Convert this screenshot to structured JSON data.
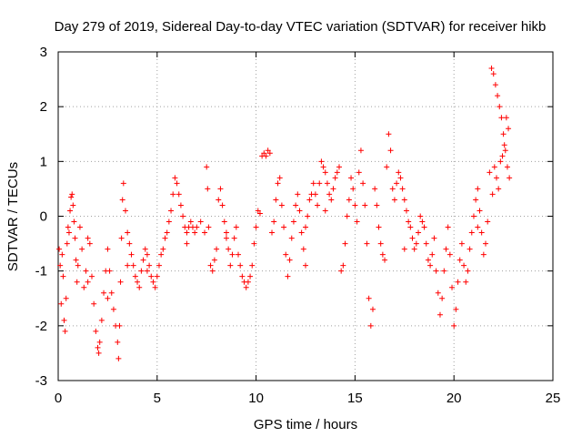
{
  "chart_data": {
    "type": "scatter",
    "title": "Day 279 of 2019, Sidereal Day-to-day VTEC variation (SDTVAR) for receiver hikb",
    "xlabel": "GPS time / hours",
    "ylabel": "SDTVAR / TECUs",
    "xlim": [
      0,
      25
    ],
    "ylim": [
      -3,
      3
    ],
    "xticks": [
      "0",
      "5",
      "10",
      "15",
      "20",
      "25"
    ],
    "yticks": [
      "-3",
      "-2",
      "-1",
      "0",
      "1",
      "2",
      "3"
    ],
    "grid": true,
    "marker": "+",
    "series_color": "#ff0000",
    "series": [
      {
        "name": "SDTVAR",
        "points": [
          [
            0.05,
            -0.6
          ],
          [
            0.1,
            -0.9
          ],
          [
            0.15,
            -1.6
          ],
          [
            0.2,
            -0.7
          ],
          [
            0.25,
            -1.1
          ],
          [
            0.3,
            -1.9
          ],
          [
            0.35,
            -2.1
          ],
          [
            0.4,
            -1.5
          ],
          [
            0.45,
            -0.5
          ],
          [
            0.5,
            -0.2
          ],
          [
            0.55,
            -0.3
          ],
          [
            0.6,
            0.1
          ],
          [
            0.65,
            0.35
          ],
          [
            0.7,
            0.4
          ],
          [
            0.75,
            0.2
          ],
          [
            0.8,
            -0.1
          ],
          [
            0.85,
            -0.4
          ],
          [
            0.9,
            -0.8
          ],
          [
            0.95,
            -1.2
          ],
          [
            1.0,
            -0.9
          ],
          [
            1.1,
            -0.2
          ],
          [
            1.2,
            -0.6
          ],
          [
            1.3,
            -1.3
          ],
          [
            1.4,
            -1.0
          ],
          [
            1.5,
            -0.4
          ],
          [
            1.6,
            -0.5
          ],
          [
            1.7,
            -1.1
          ],
          [
            1.8,
            -1.6
          ],
          [
            1.9,
            -2.1
          ],
          [
            2.0,
            -2.4
          ],
          [
            2.05,
            -2.5
          ],
          [
            2.1,
            -2.3
          ],
          [
            2.2,
            -1.9
          ],
          [
            2.3,
            -1.4
          ],
          [
            2.4,
            -1.0
          ],
          [
            2.5,
            -0.6
          ],
          [
            2.6,
            -1.0
          ],
          [
            2.7,
            -1.4
          ],
          [
            2.8,
            -1.7
          ],
          [
            2.9,
            -2.0
          ],
          [
            3.0,
            -2.3
          ],
          [
            3.05,
            -2.6
          ],
          [
            3.1,
            -2.0
          ],
          [
            3.15,
            -1.2
          ],
          [
            3.2,
            -0.4
          ],
          [
            3.25,
            0.3
          ],
          [
            3.3,
            0.6
          ],
          [
            3.4,
            0.1
          ],
          [
            3.5,
            -0.3
          ],
          [
            3.6,
            -0.5
          ],
          [
            3.7,
            -0.7
          ],
          [
            3.8,
            -0.9
          ],
          [
            3.9,
            -1.1
          ],
          [
            4.0,
            -1.2
          ],
          [
            4.1,
            -1.3
          ],
          [
            4.2,
            -1.0
          ],
          [
            4.3,
            -0.8
          ],
          [
            4.4,
            -0.6
          ],
          [
            4.5,
            -0.7
          ],
          [
            4.6,
            -0.9
          ],
          [
            4.7,
            -1.1
          ],
          [
            4.8,
            -1.2
          ],
          [
            4.9,
            -1.3
          ],
          [
            5.0,
            -1.1
          ],
          [
            5.1,
            -0.9
          ],
          [
            5.2,
            -0.7
          ],
          [
            5.3,
            -0.6
          ],
          [
            5.4,
            -0.4
          ],
          [
            5.5,
            -0.3
          ],
          [
            5.6,
            -0.1
          ],
          [
            5.7,
            0.1
          ],
          [
            5.8,
            0.4
          ],
          [
            5.9,
            0.7
          ],
          [
            6.0,
            0.6
          ],
          [
            6.1,
            0.4
          ],
          [
            6.2,
            0.2
          ],
          [
            6.3,
            0.0
          ],
          [
            6.4,
            -0.2
          ],
          [
            6.5,
            -0.3
          ],
          [
            6.6,
            -0.2
          ],
          [
            6.7,
            -0.1
          ],
          [
            6.8,
            -0.2
          ],
          [
            6.9,
            -0.3
          ],
          [
            7.0,
            -0.2
          ],
          [
            7.2,
            -0.1
          ],
          [
            7.4,
            -0.3
          ],
          [
            7.5,
            0.9
          ],
          [
            7.55,
            0.5
          ],
          [
            7.6,
            -0.2
          ],
          [
            7.7,
            -0.9
          ],
          [
            7.8,
            -1.0
          ],
          [
            7.9,
            -0.8
          ],
          [
            8.0,
            -0.6
          ],
          [
            8.1,
            0.3
          ],
          [
            8.2,
            0.5
          ],
          [
            8.3,
            0.2
          ],
          [
            8.4,
            -0.1
          ],
          [
            8.5,
            -0.3
          ],
          [
            8.6,
            -0.6
          ],
          [
            8.7,
            -0.9
          ],
          [
            8.8,
            -0.7
          ],
          [
            8.9,
            -0.4
          ],
          [
            9.0,
            -0.2
          ],
          [
            9.1,
            -0.7
          ],
          [
            9.2,
            -0.9
          ],
          [
            9.3,
            -1.1
          ],
          [
            9.4,
            -1.2
          ],
          [
            9.5,
            -1.3
          ],
          [
            9.6,
            -1.2
          ],
          [
            9.7,
            -1.1
          ],
          [
            9.8,
            -0.9
          ],
          [
            9.9,
            -0.5
          ],
          [
            10.0,
            -0.2
          ],
          [
            10.1,
            0.1
          ],
          [
            10.2,
            0.05
          ],
          [
            10.3,
            1.1
          ],
          [
            10.4,
            1.15
          ],
          [
            10.5,
            1.1
          ],
          [
            10.6,
            1.2
          ],
          [
            10.7,
            1.15
          ],
          [
            10.8,
            -0.3
          ],
          [
            10.9,
            -0.1
          ],
          [
            11.0,
            0.3
          ],
          [
            11.1,
            0.6
          ],
          [
            11.2,
            0.7
          ],
          [
            11.3,
            0.2
          ],
          [
            11.4,
            -0.2
          ],
          [
            11.5,
            -0.7
          ],
          [
            11.6,
            -1.1
          ],
          [
            11.7,
            -0.8
          ],
          [
            11.8,
            -0.4
          ],
          [
            11.9,
            -0.1
          ],
          [
            12.0,
            0.2
          ],
          [
            12.1,
            0.4
          ],
          [
            12.2,
            0.1
          ],
          [
            12.3,
            -0.3
          ],
          [
            12.4,
            -0.6
          ],
          [
            12.5,
            -0.2
          ],
          [
            12.6,
            0.0
          ],
          [
            12.7,
            0.3
          ],
          [
            12.8,
            0.4
          ],
          [
            12.9,
            0.6
          ],
          [
            13.0,
            0.4
          ],
          [
            13.1,
            0.2
          ],
          [
            13.2,
            0.6
          ],
          [
            13.3,
            1.0
          ],
          [
            13.4,
            0.9
          ],
          [
            13.5,
            0.8
          ],
          [
            13.6,
            0.6
          ],
          [
            13.7,
            0.4
          ],
          [
            13.8,
            0.3
          ],
          [
            13.9,
            0.5
          ],
          [
            14.0,
            0.7
          ],
          [
            14.1,
            0.8
          ],
          [
            14.2,
            0.9
          ],
          [
            14.3,
            -1.0
          ],
          [
            14.4,
            -0.9
          ],
          [
            14.5,
            -0.5
          ],
          [
            14.6,
            0.0
          ],
          [
            14.7,
            0.3
          ],
          [
            14.8,
            0.7
          ],
          [
            14.9,
            0.5
          ],
          [
            15.0,
            0.2
          ],
          [
            15.1,
            -0.1
          ],
          [
            15.2,
            0.8
          ],
          [
            15.3,
            1.2
          ],
          [
            15.4,
            0.6
          ],
          [
            15.5,
            0.2
          ],
          [
            15.6,
            -0.5
          ],
          [
            15.7,
            -1.5
          ],
          [
            15.8,
            -2.0
          ],
          [
            15.9,
            -1.7
          ],
          [
            16.0,
            0.5
          ],
          [
            16.1,
            0.2
          ],
          [
            16.2,
            -0.2
          ],
          [
            16.3,
            -0.5
          ],
          [
            16.4,
            -0.7
          ],
          [
            16.5,
            -0.8
          ],
          [
            16.6,
            0.9
          ],
          [
            16.7,
            1.5
          ],
          [
            16.8,
            1.2
          ],
          [
            16.9,
            0.5
          ],
          [
            17.0,
            0.3
          ],
          [
            17.1,
            0.6
          ],
          [
            17.2,
            0.8
          ],
          [
            17.3,
            0.7
          ],
          [
            17.4,
            0.5
          ],
          [
            17.5,
            0.3
          ],
          [
            17.6,
            0.1
          ],
          [
            17.7,
            -0.1
          ],
          [
            17.8,
            -0.2
          ],
          [
            17.9,
            -0.4
          ],
          [
            18.0,
            -0.6
          ],
          [
            18.1,
            -0.5
          ],
          [
            18.2,
            -0.3
          ],
          [
            18.3,
            0.0
          ],
          [
            18.4,
            -0.1
          ],
          [
            18.5,
            -0.2
          ],
          [
            18.6,
            -0.5
          ],
          [
            18.7,
            -0.8
          ],
          [
            18.8,
            -0.9
          ],
          [
            18.9,
            -0.7
          ],
          [
            19.0,
            -0.4
          ],
          [
            19.1,
            -1.0
          ],
          [
            19.2,
            -1.4
          ],
          [
            19.3,
            -1.8
          ],
          [
            19.4,
            -1.5
          ],
          [
            19.5,
            -1.0
          ],
          [
            19.6,
            -0.6
          ],
          [
            19.7,
            -0.2
          ],
          [
            19.8,
            -0.7
          ],
          [
            19.9,
            -1.3
          ],
          [
            20.0,
            -2.0
          ],
          [
            20.1,
            -1.7
          ],
          [
            20.2,
            -1.2
          ],
          [
            20.3,
            -0.8
          ],
          [
            20.4,
            -0.5
          ],
          [
            20.5,
            -0.9
          ],
          [
            20.6,
            -1.2
          ],
          [
            20.7,
            -1.0
          ],
          [
            20.8,
            -0.6
          ],
          [
            20.9,
            -0.3
          ],
          [
            21.0,
            0.0
          ],
          [
            21.1,
            0.3
          ],
          [
            21.2,
            0.5
          ],
          [
            21.3,
            0.1
          ],
          [
            21.4,
            -0.3
          ],
          [
            21.5,
            -0.7
          ],
          [
            21.6,
            -0.5
          ],
          [
            21.7,
            -0.1
          ],
          [
            21.8,
            0.8
          ],
          [
            21.9,
            2.7
          ],
          [
            22.0,
            2.6
          ],
          [
            22.1,
            2.4
          ],
          [
            22.2,
            2.2
          ],
          [
            22.3,
            2.0
          ],
          [
            22.4,
            1.8
          ],
          [
            22.5,
            1.5
          ],
          [
            22.6,
            1.2
          ],
          [
            22.7,
            0.9
          ],
          [
            22.8,
            0.7
          ],
          [
            21.95,
            0.4
          ],
          [
            22.05,
            0.9
          ],
          [
            22.15,
            0.7
          ],
          [
            22.25,
            0.5
          ],
          [
            22.35,
            1.0
          ],
          [
            22.45,
            1.1
          ],
          [
            22.55,
            1.3
          ],
          [
            22.65,
            1.8
          ],
          [
            22.75,
            1.6
          ],
          [
            1.5,
            -1.2
          ],
          [
            2.5,
            -1.5
          ],
          [
            3.5,
            -0.9
          ],
          [
            4.5,
            -1.0
          ],
          [
            6.5,
            -0.5
          ],
          [
            8.5,
            -0.4
          ],
          [
            12.5,
            -0.9
          ],
          [
            13.5,
            0.1
          ],
          [
            17.5,
            -0.6
          ],
          [
            21.2,
            -0.2
          ]
        ]
      }
    ]
  }
}
